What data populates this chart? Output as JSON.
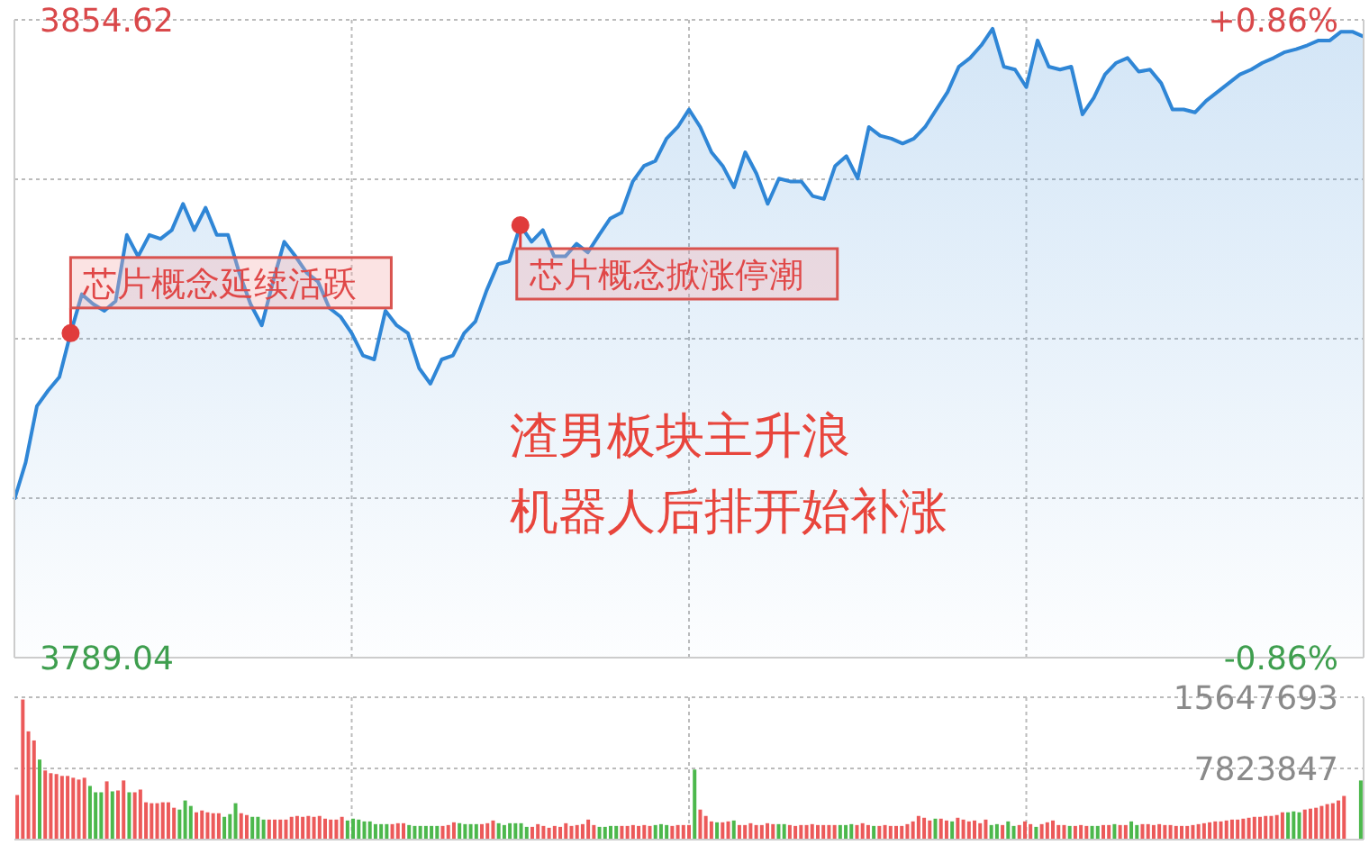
{
  "chart_data": [
    {
      "type": "area",
      "color": "#2f86d6",
      "categories": [
        null,
        null,
        null,
        null,
        null,
        null,
        null,
        null,
        null,
        null,
        null,
        null,
        null,
        null,
        null,
        null,
        null,
        null,
        null,
        null,
        null,
        null,
        null,
        null,
        null,
        null,
        null,
        null,
        null,
        null,
        null,
        null,
        null,
        null,
        null,
        null,
        null,
        null,
        null,
        null,
        null,
        null,
        null,
        null,
        null,
        null,
        null,
        null,
        null,
        null,
        null,
        null,
        null,
        null,
        null,
        null,
        null,
        null,
        null,
        null,
        null,
        null,
        null,
        null,
        null,
        null,
        null,
        null,
        null,
        null,
        null,
        null,
        null,
        null,
        null,
        null,
        null,
        null,
        null,
        null,
        null,
        null,
        null,
        null,
        null,
        null,
        null,
        null,
        null,
        null,
        null,
        null,
        null,
        null,
        null,
        null,
        null,
        null,
        null,
        null,
        null,
        null,
        null,
        null,
        null,
        null,
        null,
        null,
        null,
        null,
        null,
        null,
        null,
        null,
        null,
        null,
        null,
        null,
        null,
        null,
        null
      ],
      "ylim": [
        3789.04,
        3854.62
      ],
      "yticks": [
        3789.04,
        {
          "value": 3805.435,
          "label": null
        },
        {
          "value": 3821.83,
          "label": null
        },
        {
          "value": 3838.225,
          "label": null
        },
        3854.62
      ],
      "y2lim": [
        -0.86,
        0.86
      ],
      "y2ticks": [
        {
          "value": -0.86,
          "label": "-0.86%"
        },
        {
          "value": 0.86,
          "label": "+0.86%"
        }
      ],
      "tick_labels": "y",
      "grid": true,
      "values": [
        3805.3,
        3809.1,
        3814.9,
        3816.5,
        3817.9,
        3822.4,
        3826.4,
        3825.4,
        3824.7,
        3825.7,
        3832.5,
        3830.3,
        3832.5,
        3832.1,
        3833.0,
        3835.7,
        3833.0,
        3835.3,
        3832.5,
        3832.5,
        3828.6,
        3825.4,
        3823.2,
        3827.7,
        3831.8,
        3830.3,
        3828.6,
        3827.7,
        3825.0,
        3824.1,
        3822.4,
        3820.1,
        3819.7,
        3824.7,
        3823.2,
        3822.4,
        3818.8,
        3817.2,
        3819.7,
        3820.1,
        3822.4,
        3823.6,
        3826.8,
        3829.5,
        3829.8,
        3833.5,
        3831.8,
        3833.0,
        3830.3,
        3830.3,
        3831.6,
        3830.7,
        3832.5,
        3834.2,
        3834.8,
        3838.0,
        3839.6,
        3840.1,
        3842.4,
        3843.6,
        3845.4,
        3843.6,
        3841.0,
        3839.6,
        3837.4,
        3841.0,
        3838.8,
        3835.7,
        3838.3,
        3838.0,
        3838.0,
        3836.5,
        3836.2,
        3839.6,
        3840.6,
        3838.3,
        3843.6,
        3842.7,
        3842.4,
        3841.9,
        3842.4,
        3843.6,
        3845.4,
        3847.2,
        3849.8,
        3850.7,
        3852.0,
        3853.7,
        3849.8,
        3849.5,
        3847.7,
        3852.5,
        3849.8,
        3849.5,
        3849.8,
        3844.9,
        3846.6,
        3849.0,
        3850.2,
        3850.7,
        3849.3,
        3849.5,
        3848.1,
        3845.4,
        3845.4,
        3845.1,
        3846.3,
        3847.2,
        3848.1,
        3849.0,
        3849.5,
        3850.2,
        3850.7,
        3851.3,
        3851.6,
        3852.0,
        3852.5,
        3852.5,
        3853.4,
        3853.4,
        3852.9
      ],
      "annotations": [
        "芯片概念延续活跃",
        "芯片概念掀涨停潮",
        "渣男板块主升浪",
        "机器人后排开始补涨"
      ]
    },
    {
      "type": "bar",
      "ylim": [
        0,
        15647693
      ],
      "yticks": [
        7823847,
        15647693
      ],
      "tick_labels": "y",
      "grid": true,
      "categories": [
        null,
        null,
        null,
        null,
        null,
        null,
        null,
        null,
        null,
        null,
        null,
        null,
        null,
        null,
        null,
        null,
        null,
        null,
        null,
        null,
        null,
        null,
        null,
        null,
        null,
        null,
        null,
        null,
        null,
        null,
        null,
        null,
        null,
        null,
        null,
        null,
        null,
        null,
        null,
        null,
        null,
        null,
        null,
        null,
        null,
        null,
        null,
        null,
        null,
        null,
        null,
        null,
        null,
        null,
        null,
        null,
        null,
        null,
        null,
        null,
        null,
        null,
        null,
        null,
        null,
        null,
        null,
        null,
        null,
        null,
        null,
        null,
        null,
        null,
        null,
        null,
        null,
        null,
        null,
        null,
        null,
        null,
        null,
        null,
        null,
        null,
        null,
        null,
        null,
        null,
        null,
        null,
        null,
        null,
        null,
        null,
        null,
        null,
        null,
        null,
        null,
        null,
        null,
        null,
        null,
        null,
        null,
        null,
        null,
        null,
        null,
        null,
        null,
        null,
        null,
        null,
        null,
        null,
        null,
        null,
        null,
        null,
        null,
        null,
        null,
        null,
        null,
        null,
        null,
        null,
        null,
        null,
        null,
        null,
        null,
        null,
        null,
        null,
        null,
        null,
        null,
        null,
        null,
        null,
        null,
        null,
        null,
        null,
        null,
        null,
        null,
        null,
        null,
        null,
        null,
        null,
        null,
        null,
        null,
        null,
        null,
        null,
        null,
        null,
        null,
        null,
        null,
        null,
        null,
        null,
        null,
        null,
        null,
        null,
        null,
        null,
        null,
        null,
        null,
        null,
        null,
        null,
        null,
        null,
        null,
        null,
        null,
        null,
        null,
        null,
        null,
        null,
        null,
        null,
        null,
        null,
        null,
        null,
        null,
        null,
        null,
        null,
        null,
        null,
        null,
        null,
        null,
        null,
        null,
        null,
        null,
        null,
        null,
        null,
        null,
        null,
        null,
        null,
        null,
        null,
        null,
        null,
        null,
        null,
        null,
        null,
        null,
        null,
        null,
        null,
        null,
        null,
        null,
        null,
        null,
        null,
        null,
        null,
        null,
        null,
        null
      ],
      "values": [
        4900000,
        15400000,
        11900000,
        10900000,
        8800000,
        7600000,
        7300000,
        7200000,
        7000000,
        7000000,
        6800000,
        6600000,
        6800000,
        5900000,
        5200000,
        5200000,
        6400000,
        5300000,
        5400000,
        6500000,
        5200000,
        5200000,
        5500000,
        4100000,
        4000000,
        4000000,
        4100000,
        4100000,
        3500000,
        3300000,
        4300000,
        3700000,
        3000000,
        3200000,
        3000000,
        2900000,
        2900000,
        2500000,
        2800000,
        4000000,
        2900000,
        2700000,
        2500000,
        2500000,
        2200000,
        2200000,
        2200000,
        2200000,
        2200000,
        2500000,
        2600000,
        2500000,
        2600000,
        2500000,
        2600000,
        2300000,
        2200000,
        2200000,
        2500000,
        2100000,
        2300000,
        2200000,
        2000000,
        2000000,
        1700000,
        1700000,
        1700000,
        1700000,
        1800000,
        1800000,
        1600000,
        1500000,
        1500000,
        1500000,
        1500000,
        1500000,
        1500000,
        1600000,
        1900000,
        1800000,
        1700000,
        1700000,
        1700000,
        1700000,
        1800000,
        2100000,
        1800000,
        1600000,
        1800000,
        1800000,
        1800000,
        1400000,
        1400000,
        1700000,
        1500000,
        1300000,
        1500000,
        1400000,
        1800000,
        1500000,
        1600000,
        1700000,
        2200000,
        1600000,
        1400000,
        1400000,
        1500000,
        1500000,
        1500000,
        1500000,
        1600000,
        1500000,
        1600000,
        1500000,
        1600000,
        1700000,
        1600000,
        1500000,
        1600000,
        1600000,
        1600000,
        7700000,
        3300000,
        2600000,
        2000000,
        1900000,
        1900000,
        2000000,
        2100000,
        1600000,
        1600000,
        1800000,
        1600000,
        1600000,
        1800000,
        1700000,
        1700000,
        1700000,
        1600000,
        1500000,
        1600000,
        1600000,
        1700000,
        1600000,
        1600000,
        1600000,
        1600000,
        1600000,
        1600000,
        1700000,
        1600000,
        1800000,
        1600000,
        1500000,
        1500000,
        1600000,
        1500000,
        1500000,
        1500000,
        1700000,
        2000000,
        2600000,
        2400000,
        2100000,
        2300000,
        2300000,
        2100000,
        2000000,
        2400000,
        2200000,
        2000000,
        2100000,
        1800000,
        2200000,
        1600000,
        1700000,
        1600000,
        2000000,
        1500000,
        1600000,
        2000000,
        1700000,
        1400000,
        1700000,
        1900000,
        2100000,
        1600000,
        1600000,
        1500000,
        1500000,
        1600000,
        1500000,
        1500000,
        1500000,
        1600000,
        1600000,
        1700000,
        1600000,
        1600000,
        2000000,
        1600000,
        1700000,
        1700000,
        1600000,
        1700000,
        1600000,
        1600000,
        1500000,
        1500000,
        1500000,
        1600000,
        1700000,
        1800000,
        1900000,
        2000000,
        2000000,
        2100000,
        2200000,
        2200000,
        2300000,
        2400000,
        2500000,
        2500000,
        2600000,
        2600000,
        2700000,
        3000000,
        3000000,
        3100000,
        3000000,
        3300000,
        3400000,
        3500000,
        3700000,
        3900000,
        4000000,
        4300000,
        4800000,
        null,
        null,
        6500000
      ],
      "colors": [
        "#ec5a5a",
        "#ec5a5a",
        "#ec5a5a",
        "#ec5a5a",
        "#4cb84c",
        "#ec5a5a",
        "#ec5a5a",
        "#ec5a5a",
        "#ec5a5a",
        "#ec5a5a",
        "#ec5a5a",
        "#ec5a5a",
        "#ec5a5a",
        "#4cb84c",
        "#4cb84c",
        "#4cb84c",
        "#ec5a5a",
        "#4cb84c",
        "#ec5a5a",
        "#ec5a5a",
        "#4cb84c",
        "#ec5a5a",
        "#ec5a5a",
        "#ec5a5a",
        "#ec5a5a",
        "#ec5a5a",
        "#ec5a5a",
        "#ec5a5a",
        "#ec5a5a",
        "#4cb84c",
        "#4cb84c",
        "#4cb84c",
        "#ec5a5a",
        "#ec5a5a",
        "#ec5a5a",
        "#ec5a5a",
        "#ec5a5a",
        "#4cb84c",
        "#4cb84c",
        "#4cb84c",
        "#ec5a5a",
        "#ec5a5a",
        "#4cb84c",
        "#4cb84c",
        "#4cb84c",
        "#ec5a5a",
        "#ec5a5a",
        "#ec5a5a",
        "#ec5a5a",
        "#ec5a5a",
        "#ec5a5a",
        "#ec5a5a",
        "#ec5a5a",
        "#ec5a5a",
        "#ec5a5a",
        "#ec5a5a",
        "#ec5a5a",
        "#ec5a5a",
        "#ec5a5a",
        "#4cb84c",
        "#4cb84c",
        "#4cb84c",
        "#4cb84c",
        "#4cb84c",
        "#4cb84c",
        "#4cb84c",
        "#4cb84c",
        "#ec5a5a",
        "#ec5a5a",
        "#ec5a5a",
        "#4cb84c",
        "#4cb84c",
        "#4cb84c",
        "#4cb84c",
        "#4cb84c",
        "#4cb84c",
        "#ec5a5a",
        "#ec5a5a",
        "#ec5a5a",
        "#4cb84c",
        "#4cb84c",
        "#4cb84c",
        "#4cb84c",
        "#ec5a5a",
        "#ec5a5a",
        "#ec5a5a",
        "#4cb84c",
        "#4cb84c",
        "#4cb84c",
        "#4cb84c",
        "#4cb84c",
        "#4cb84c",
        "#ec5a5a",
        "#ec5a5a",
        "#ec5a5a",
        "#ec5a5a",
        "#ec5a5a",
        "#ec5a5a",
        "#ec5a5a",
        "#ec5a5a",
        "#ec5a5a",
        "#ec5a5a",
        "#ec5a5a",
        "#ec5a5a",
        "#4cb84c",
        "#4cb84c",
        "#4cb84c",
        "#4cb84c",
        "#ec5a5a",
        "#ec5a5a",
        "#ec5a5a",
        "#ec5a5a",
        "#ec5a5a",
        "#ec5a5a",
        "#4cb84c",
        "#4cb84c",
        "#4cb84c",
        "#ec5a5a",
        "#ec5a5a",
        "#ec5a5a",
        "#ec5a5a",
        "#4cb84c",
        "#ec5a5a",
        "#ec5a5a",
        "#ec5a5a",
        "#4cb84c",
        "#ec5a5a",
        "#ec5a5a",
        "#4cb84c",
        "#ec5a5a",
        "#ec5a5a",
        "#ec5a5a",
        "#ec5a5a",
        "#ec5a5a",
        "#ec5a5a",
        "#ec5a5a",
        "#4cb84c",
        "#4cb84c",
        "#ec5a5a",
        "#ec5a5a",
        "#ec5a5a",
        "#ec5a5a",
        "#ec5a5a",
        "#ec5a5a",
        "#ec5a5a",
        "#ec5a5a",
        "#ec5a5a",
        "#4cb84c",
        "#4cb84c",
        "#4cb84c",
        "#ec5a5a",
        "#ec5a5a",
        "#ec5a5a",
        "#4cb84c",
        "#ec5a5a",
        "#ec5a5a",
        "#ec5a5a",
        "#ec5a5a",
        "#ec5a5a",
        "#ec5a5a",
        "#ec5a5a",
        "#ec5a5a",
        "#ec5a5a",
        "#ec5a5a",
        "#4cb84c",
        "#ec5a5a",
        "#ec5a5a",
        "#4cb84c",
        "#ec5a5a",
        "#ec5a5a",
        "#ec5a5a",
        "#ec5a5a",
        "#ec5a5a",
        "#ec5a5a",
        "#4cb84c",
        "#4cb84c",
        "#ec5a5a",
        "#4cb84c",
        "#4cb84c",
        "#ec5a5a",
        "#ec5a5a",
        "#ec5a5a",
        "#4cb84c",
        "#ec5a5a",
        "#ec5a5a",
        "#ec5a5a",
        "#ec5a5a",
        "#ec5a5a",
        "#4cb84c",
        "#ec5a5a",
        "#ec5a5a",
        "#ec5a5a",
        "#4cb84c",
        "#4cb84c",
        "#ec5a5a",
        "#ec5a5a",
        "#4cb84c",
        "#ec5a5a",
        "#ec5a5a",
        "#4cb84c",
        "#4cb84c",
        "#ec5a5a",
        "#ec5a5a",
        "#ec5a5a",
        "#ec5a5a",
        "#ec5a5a",
        "#ec5a5a",
        "#ec5a5a",
        "#ec5a5a",
        "#ec5a5a",
        "#ec5a5a",
        "#ec5a5a",
        "#ec5a5a",
        "#ec5a5a",
        "#ec5a5a",
        "#ec5a5a",
        "#ec5a5a",
        "#ec5a5a",
        "#ec5a5a",
        "#ec5a5a",
        "#ec5a5a",
        "#ec5a5a",
        "#ec5a5a",
        "#ec5a5a",
        "#ec5a5a",
        "#ec5a5a",
        "#ec5a5a",
        "#4cb84c",
        "#4cb84c",
        "#4cb84c",
        "#ec5a5a",
        "#ec5a5a",
        "#ec5a5a",
        "#ec5a5a",
        "#ec5a5a",
        "#ec5a5a",
        "#ec5a5a",
        "#ec5a5a",
        "#ec5a5a",
        "#ec5a5a",
        "#4cb84c"
      ]
    }
  ]
}
